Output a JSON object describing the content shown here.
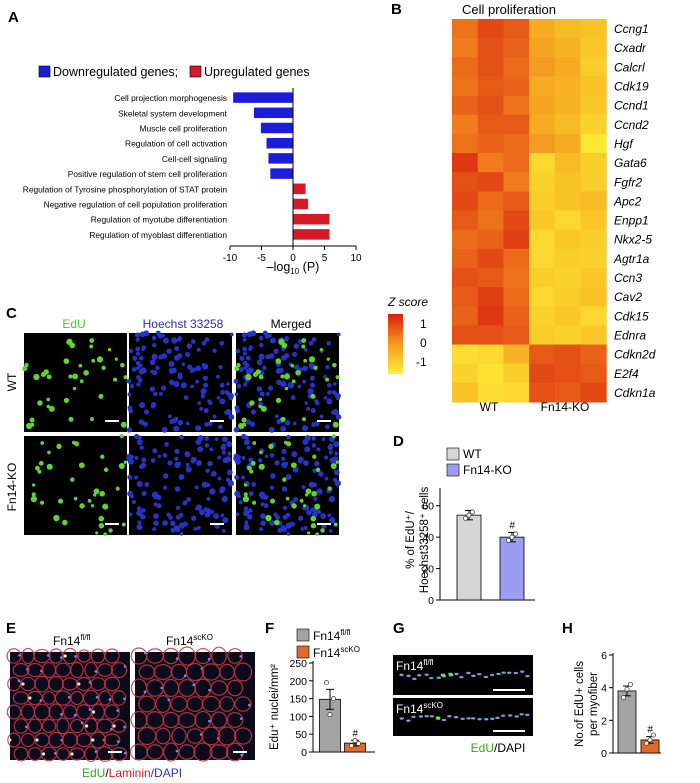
{
  "panels": {
    "A": "A",
    "B": "B",
    "C": "C",
    "D": "D",
    "E": "E",
    "F": "F",
    "G": "G",
    "H": "H"
  },
  "panelA": {
    "legend": [
      "Downregulated genes;",
      "Upregulated genes"
    ],
    "colors": {
      "down": "#1d1dd8",
      "up": "#d41a26"
    },
    "xlabel": "–log",
    "xlabel_sub": "10",
    "xlabel_tail": " (P)",
    "ticks": [
      "-10",
      "-5",
      "0",
      "5",
      "10"
    ]
  },
  "panelB": {
    "title": "Cell proliferation",
    "groups": [
      "WT",
      "Fn14-KO"
    ],
    "zscore_label": "Z score",
    "zscore_ticks": [
      "1",
      "0",
      "-1"
    ]
  },
  "panelC": {
    "columns": [
      "EdU",
      "Hoechst 33258",
      "Merged"
    ],
    "rows": [
      "WT",
      "Fn14-KO"
    ],
    "colors": {
      "edu": "#5cd62e",
      "hoechst": "#2733c4"
    }
  },
  "panelD": {
    "legend": [
      "WT",
      "Fn14-KO"
    ],
    "ylabel1": "% of EdU⁺/",
    "ylabel2": "Hoechst33258⁺ cells",
    "ticks": [
      "0",
      "20",
      "40",
      "60"
    ],
    "sig": "#"
  },
  "panelE": {
    "labels": [
      "Fn14",
      "Fn14"
    ],
    "sups": [
      "fl/fl",
      "scKO"
    ],
    "caption": [
      "EdU",
      "/",
      "Laminin",
      "/DAPI"
    ]
  },
  "panelF": {
    "legend": [
      "Fn14",
      "Fn14"
    ],
    "legend_sups": [
      "fl/fl",
      "scKO"
    ],
    "ylabel": "Edu⁺ nuclei/mm²",
    "ticks": [
      "0",
      "50",
      "100",
      "150",
      "200",
      "250"
    ],
    "sig": "#"
  },
  "panelG": {
    "labels": [
      "Fn14",
      "Fn14"
    ],
    "sups": [
      "fl/fl",
      "scKO"
    ],
    "caption": [
      "EdU",
      "/DAPI"
    ]
  },
  "panelH": {
    "ylabel1": "No.of EdU+ cells",
    "ylabel2": "per myofiber",
    "ticks": [
      "0",
      "2",
      "4",
      "6"
    ],
    "sig": "#"
  },
  "chart_data": [
    {
      "type": "bar",
      "orientation": "horizontal",
      "categories": [
        "Cell projection morphogenesis",
        "Skeletal system development",
        "Muscle cell proliferation",
        "Regulation of cell activation",
        "Cell-cell signaling",
        "Positive regulation of stem cell proliferation",
        "Regulation of Tyrosine phosphorylation of STAT protein",
        "Negative regulation of cell population proliferation",
        "Regulation of myotube differentiation",
        "Regulation of myoblast differentiation"
      ],
      "values": [
        -9.5,
        -6.2,
        -5.1,
        -4.2,
        -3.9,
        -3.6,
        2.0,
        2.4,
        5.8,
        5.8
      ],
      "xlim": [
        -10,
        10
      ]
    },
    {
      "type": "heatmap",
      "rows": [
        "Ccng1",
        "Cxadr",
        "Calcrl",
        "Cdk19",
        "Ccnd1",
        "Ccnd2",
        "Hgf",
        "Gata6",
        "Fgfr2",
        "Apc2",
        "Enpp1",
        "Nkx2-5",
        "Agtr1a",
        "Ccn3",
        "Cav2",
        "Cdk15",
        "Ednra",
        "Cdkn2d",
        "E2f4",
        "Cdkn1a"
      ],
      "columns": [
        "WT",
        "WT",
        "WT",
        "Fn14-KO",
        "Fn14-KO",
        "Fn14-KO"
      ],
      "values": [
        [
          0.5,
          1.0,
          0.8,
          -0.2,
          -0.4,
          -0.5
        ],
        [
          0.4,
          0.9,
          0.7,
          -0.1,
          -0.3,
          -0.6
        ],
        [
          0.6,
          0.9,
          0.6,
          0.0,
          -0.2,
          -0.7
        ],
        [
          0.5,
          0.8,
          0.7,
          -0.2,
          -0.3,
          -0.5
        ],
        [
          0.7,
          0.9,
          0.5,
          -0.1,
          -0.3,
          -0.6
        ],
        [
          0.4,
          0.8,
          0.8,
          -0.2,
          -0.4,
          -0.8
        ],
        [
          0.5,
          0.7,
          0.6,
          0.0,
          -0.2,
          -1.2
        ],
        [
          1.2,
          0.4,
          0.6,
          -0.9,
          -0.4,
          -0.7
        ],
        [
          0.9,
          1.0,
          0.4,
          -0.8,
          -0.5,
          -0.7
        ],
        [
          1.0,
          0.6,
          0.8,
          -0.7,
          -0.5,
          -0.4
        ],
        [
          0.8,
          0.5,
          1.0,
          -0.6,
          -0.9,
          -0.6
        ],
        [
          0.6,
          0.7,
          1.1,
          -0.9,
          -0.6,
          -0.7
        ],
        [
          0.7,
          1.0,
          0.6,
          -0.9,
          -0.7,
          -0.8
        ],
        [
          0.9,
          0.8,
          0.5,
          -0.7,
          -0.8,
          -0.6
        ],
        [
          0.8,
          1.1,
          0.6,
          -0.9,
          -0.7,
          -0.5
        ],
        [
          0.7,
          1.2,
          0.7,
          -0.8,
          -0.6,
          -0.9
        ],
        [
          0.9,
          0.9,
          0.8,
          -0.7,
          -0.8,
          -0.6
        ],
        [
          -1.0,
          -0.9,
          -0.3,
          0.8,
          0.9,
          0.7
        ],
        [
          -0.8,
          -1.1,
          -0.7,
          1.0,
          0.9,
          0.8
        ],
        [
          -0.5,
          -1.0,
          -0.9,
          0.9,
          0.8,
          1.0
        ]
      ],
      "zlim": [
        -1.5,
        1.5
      ]
    },
    {
      "type": "bar",
      "categories": [
        "WT",
        "Fn14-KO"
      ],
      "values": [
        54,
        40
      ],
      "errors": [
        3,
        3
      ],
      "points": [
        [
          52,
          54,
          56
        ],
        [
          38,
          40,
          42
        ]
      ],
      "colors": [
        "#d6d6d6",
        "#9b9cf2"
      ],
      "ylim": [
        0,
        70
      ]
    },
    {
      "type": "bar",
      "categories": [
        "Fn14fl/fl",
        "Fn14scKO"
      ],
      "values": [
        148,
        25
      ],
      "errors": [
        28,
        8
      ],
      "points": [
        [
          195,
          105,
          150
        ],
        [
          18,
          32,
          24
        ]
      ],
      "colors": [
        "#a3a3a3",
        "#e06a27"
      ],
      "ylim": [
        0,
        250
      ]
    },
    {
      "type": "bar",
      "categories": [
        "Fn14fl/fl",
        "Fn14scKO"
      ],
      "values": [
        3.8,
        0.8
      ],
      "errors": [
        0.3,
        0.2
      ],
      "points": [
        [
          3.4,
          3.9,
          4.2
        ],
        [
          0.6,
          0.8,
          1.1
        ]
      ],
      "colors": [
        "#a3a3a3",
        "#e06a27"
      ],
      "ylim": [
        0,
        6
      ]
    }
  ]
}
